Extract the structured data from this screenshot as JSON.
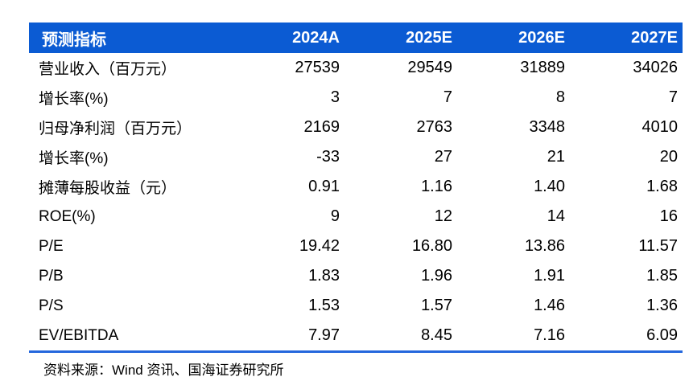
{
  "table": {
    "header": {
      "label": "预测指标",
      "columns": [
        "2024A",
        "2025E",
        "2026E",
        "2027E"
      ]
    },
    "rows": [
      {
        "label": "营业收入（百万元）",
        "values": [
          "27539",
          "29549",
          "31889",
          "34026"
        ]
      },
      {
        "label": "增长率(%)",
        "values": [
          "3",
          "7",
          "8",
          "7"
        ]
      },
      {
        "label": "归母净利润（百万元）",
        "values": [
          "2169",
          "2763",
          "3348",
          "4010"
        ]
      },
      {
        "label": "增长率(%)",
        "values": [
          "-33",
          "27",
          "21",
          "20"
        ]
      },
      {
        "label": "摊薄每股收益（元）",
        "values": [
          "0.91",
          "1.16",
          "1.40",
          "1.68"
        ]
      },
      {
        "label": "ROE(%)",
        "values": [
          "9",
          "12",
          "14",
          "16"
        ]
      },
      {
        "label": "P/E",
        "values": [
          "19.42",
          "16.80",
          "13.86",
          "11.57"
        ]
      },
      {
        "label": "P/B",
        "values": [
          "1.83",
          "1.96",
          "1.91",
          "1.85"
        ]
      },
      {
        "label": "P/S",
        "values": [
          "1.53",
          "1.57",
          "1.46",
          "1.36"
        ]
      },
      {
        "label": "EV/EBITDA",
        "values": [
          "7.97",
          "8.45",
          "7.16",
          "6.09"
        ]
      }
    ],
    "source": "资料来源：Wind 资讯、国海证券研究所"
  },
  "colors": {
    "header_bg": "#0b5bd3",
    "header_text": "#ffffff",
    "divider": "#2567dd",
    "background": "#ffffff",
    "text": "#000000"
  }
}
